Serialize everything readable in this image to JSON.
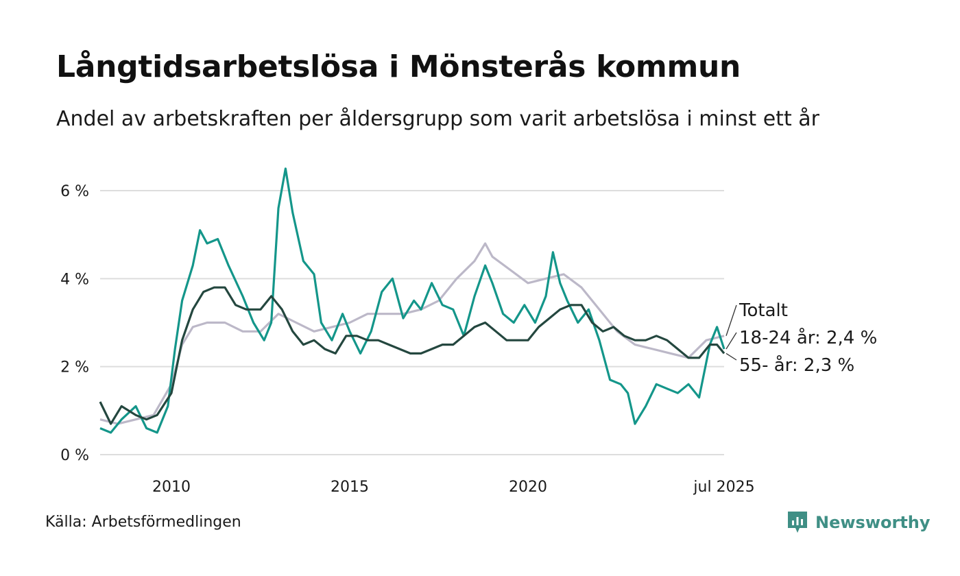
{
  "header": {
    "title": "Långtidsarbetslösa i Mönsterås kommun",
    "subtitle": "Andel av arbetskraften per åldersgrupp som varit arbetslösa i minst ett år"
  },
  "footer": {
    "source": "Källa: Arbetsförmedlingen",
    "brand": "Newsworthy",
    "brand_icon": "bar-chart-bubble-icon",
    "brand_color": "#3f8f85"
  },
  "chart_data": {
    "type": "line",
    "grid": true,
    "x_range": [
      2008.0,
      2025.5
    ],
    "ylim": [
      0,
      6.6
    ],
    "y_ticks": [
      0,
      2,
      4,
      6
    ],
    "y_tick_labels": [
      "0 %",
      "2 %",
      "4 %",
      "6 %"
    ],
    "x_ticks": [
      2010,
      2015,
      2020,
      2025.5
    ],
    "x_tick_labels": [
      "2010",
      "2015",
      "2020",
      "jul 2025"
    ],
    "series": [
      {
        "name": "Totalt",
        "end_label": "Totalt",
        "color": "#bcb8c8",
        "points": [
          [
            2008.0,
            0.8
          ],
          [
            2008.5,
            0.7
          ],
          [
            2009.0,
            0.8
          ],
          [
            2009.5,
            0.9
          ],
          [
            2010.0,
            1.6
          ],
          [
            2010.3,
            2.5
          ],
          [
            2010.6,
            2.9
          ],
          [
            2011.0,
            3.0
          ],
          [
            2011.5,
            3.0
          ],
          [
            2012.0,
            2.8
          ],
          [
            2012.5,
            2.8
          ],
          [
            2013.0,
            3.2
          ],
          [
            2013.5,
            3.0
          ],
          [
            2014.0,
            2.8
          ],
          [
            2014.5,
            2.9
          ],
          [
            2015.0,
            3.0
          ],
          [
            2015.5,
            3.2
          ],
          [
            2016.0,
            3.2
          ],
          [
            2016.5,
            3.2
          ],
          [
            2017.0,
            3.3
          ],
          [
            2017.5,
            3.5
          ],
          [
            2018.0,
            4.0
          ],
          [
            2018.5,
            4.4
          ],
          [
            2018.8,
            4.8
          ],
          [
            2019.0,
            4.5
          ],
          [
            2019.5,
            4.2
          ],
          [
            2020.0,
            3.9
          ],
          [
            2020.5,
            4.0
          ],
          [
            2021.0,
            4.1
          ],
          [
            2021.5,
            3.8
          ],
          [
            2022.0,
            3.3
          ],
          [
            2022.5,
            2.8
          ],
          [
            2023.0,
            2.5
          ],
          [
            2023.5,
            2.4
          ],
          [
            2024.0,
            2.3
          ],
          [
            2024.5,
            2.2
          ],
          [
            2025.0,
            2.6
          ],
          [
            2025.5,
            2.7
          ]
        ]
      },
      {
        "name": "18-24 år",
        "end_label": "18-24 år: 2,4 %",
        "color": "#14968a",
        "points": [
          [
            2008.0,
            0.6
          ],
          [
            2008.3,
            0.5
          ],
          [
            2008.6,
            0.8
          ],
          [
            2009.0,
            1.1
          ],
          [
            2009.3,
            0.6
          ],
          [
            2009.6,
            0.5
          ],
          [
            2009.9,
            1.1
          ],
          [
            2010.1,
            2.4
          ],
          [
            2010.3,
            3.5
          ],
          [
            2010.6,
            4.3
          ],
          [
            2010.8,
            5.1
          ],
          [
            2011.0,
            4.8
          ],
          [
            2011.3,
            4.9
          ],
          [
            2011.6,
            4.3
          ],
          [
            2012.0,
            3.6
          ],
          [
            2012.3,
            3.0
          ],
          [
            2012.6,
            2.6
          ],
          [
            2012.8,
            3.0
          ],
          [
            2013.0,
            5.6
          ],
          [
            2013.2,
            6.5
          ],
          [
            2013.4,
            5.5
          ],
          [
            2013.7,
            4.4
          ],
          [
            2014.0,
            4.1
          ],
          [
            2014.2,
            3.0
          ],
          [
            2014.5,
            2.6
          ],
          [
            2014.8,
            3.2
          ],
          [
            2015.0,
            2.8
          ],
          [
            2015.3,
            2.3
          ],
          [
            2015.6,
            2.8
          ],
          [
            2015.9,
            3.7
          ],
          [
            2016.2,
            4.0
          ],
          [
            2016.5,
            3.1
          ],
          [
            2016.8,
            3.5
          ],
          [
            2017.0,
            3.3
          ],
          [
            2017.3,
            3.9
          ],
          [
            2017.6,
            3.4
          ],
          [
            2017.9,
            3.3
          ],
          [
            2018.2,
            2.7
          ],
          [
            2018.5,
            3.6
          ],
          [
            2018.8,
            4.3
          ],
          [
            2019.0,
            3.9
          ],
          [
            2019.3,
            3.2
          ],
          [
            2019.6,
            3.0
          ],
          [
            2019.9,
            3.4
          ],
          [
            2020.2,
            3.0
          ],
          [
            2020.5,
            3.6
          ],
          [
            2020.7,
            4.6
          ],
          [
            2020.9,
            3.9
          ],
          [
            2021.1,
            3.5
          ],
          [
            2021.4,
            3.0
          ],
          [
            2021.7,
            3.3
          ],
          [
            2022.0,
            2.6
          ],
          [
            2022.3,
            1.7
          ],
          [
            2022.6,
            1.6
          ],
          [
            2022.8,
            1.4
          ],
          [
            2023.0,
            0.7
          ],
          [
            2023.3,
            1.1
          ],
          [
            2023.6,
            1.6
          ],
          [
            2023.9,
            1.5
          ],
          [
            2024.2,
            1.4
          ],
          [
            2024.5,
            1.6
          ],
          [
            2024.8,
            1.3
          ],
          [
            2025.1,
            2.5
          ],
          [
            2025.3,
            2.9
          ],
          [
            2025.5,
            2.4
          ]
        ]
      },
      {
        "name": "55- år",
        "end_label": "55- år: 2,3 %",
        "color": "#24473f",
        "points": [
          [
            2008.0,
            1.2
          ],
          [
            2008.3,
            0.7
          ],
          [
            2008.6,
            1.1
          ],
          [
            2009.0,
            0.9
          ],
          [
            2009.3,
            0.8
          ],
          [
            2009.6,
            0.9
          ],
          [
            2010.0,
            1.4
          ],
          [
            2010.3,
            2.6
          ],
          [
            2010.6,
            3.3
          ],
          [
            2010.9,
            3.7
          ],
          [
            2011.2,
            3.8
          ],
          [
            2011.5,
            3.8
          ],
          [
            2011.8,
            3.4
          ],
          [
            2012.1,
            3.3
          ],
          [
            2012.5,
            3.3
          ],
          [
            2012.8,
            3.6
          ],
          [
            2013.1,
            3.3
          ],
          [
            2013.4,
            2.8
          ],
          [
            2013.7,
            2.5
          ],
          [
            2014.0,
            2.6
          ],
          [
            2014.3,
            2.4
          ],
          [
            2014.6,
            2.3
          ],
          [
            2014.9,
            2.7
          ],
          [
            2015.2,
            2.7
          ],
          [
            2015.5,
            2.6
          ],
          [
            2015.8,
            2.6
          ],
          [
            2016.1,
            2.5
          ],
          [
            2016.4,
            2.4
          ],
          [
            2016.7,
            2.3
          ],
          [
            2017.0,
            2.3
          ],
          [
            2017.3,
            2.4
          ],
          [
            2017.6,
            2.5
          ],
          [
            2017.9,
            2.5
          ],
          [
            2018.2,
            2.7
          ],
          [
            2018.5,
            2.9
          ],
          [
            2018.8,
            3.0
          ],
          [
            2019.1,
            2.8
          ],
          [
            2019.4,
            2.6
          ],
          [
            2019.7,
            2.6
          ],
          [
            2020.0,
            2.6
          ],
          [
            2020.3,
            2.9
          ],
          [
            2020.6,
            3.1
          ],
          [
            2020.9,
            3.3
          ],
          [
            2021.2,
            3.4
          ],
          [
            2021.5,
            3.4
          ],
          [
            2021.8,
            3.0
          ],
          [
            2022.1,
            2.8
          ],
          [
            2022.4,
            2.9
          ],
          [
            2022.7,
            2.7
          ],
          [
            2023.0,
            2.6
          ],
          [
            2023.3,
            2.6
          ],
          [
            2023.6,
            2.7
          ],
          [
            2023.9,
            2.6
          ],
          [
            2024.2,
            2.4
          ],
          [
            2024.5,
            2.2
          ],
          [
            2024.8,
            2.2
          ],
          [
            2025.1,
            2.5
          ],
          [
            2025.3,
            2.5
          ],
          [
            2025.5,
            2.3
          ]
        ]
      }
    ]
  }
}
